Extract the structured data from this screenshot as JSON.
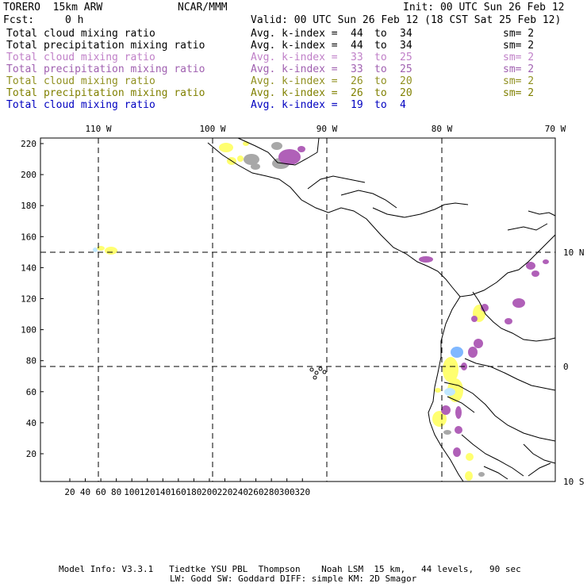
{
  "header": {
    "model_title": "TORERO  15km ARW",
    "org": "NCAR/MMM",
    "init": "Init: 00 UTC Sun 26 Feb 12",
    "fcst_label": "Fcst:",
    "fcst_value": "0 h",
    "valid": "Valid: 00 UTC Sun 26 Feb 12 (18 CST Sat 25 Feb 12)"
  },
  "legend_rows": [
    {
      "field": "Total cloud mixing ratio",
      "kindex_label": "Avg. k-index =",
      "range_from": "44",
      "to": "to",
      "range_to": "34",
      "sm": "sm= 2",
      "color": "#000000"
    },
    {
      "field": "Total precipitation mixing ratio",
      "kindex_label": "Avg. k-index =",
      "range_from": "44",
      "to": "to",
      "range_to": "34",
      "sm": "sm= 2",
      "color": "#000000"
    },
    {
      "field": "Total cloud mixing ratio",
      "kindex_label": "Avg. k-index =",
      "range_from": "33",
      "to": "to",
      "range_to": "25",
      "sm": "sm= 2",
      "color": "#c080c8"
    },
    {
      "field": "Total precipitation mixing ratio",
      "kindex_label": "Avg. k-index =",
      "range_from": "33",
      "to": "to",
      "range_to": "25",
      "sm": "sm= 2",
      "color": "#a060b0"
    },
    {
      "field": "Total cloud mixing ratio",
      "kindex_label": "Avg. k-index =",
      "range_from": "26",
      "to": "to",
      "range_to": "20",
      "sm": "sm= 2",
      "color": "#909020"
    },
    {
      "field": "Total precipitation mixing ratio",
      "kindex_label": "Avg. k-index =",
      "range_from": "26",
      "to": "to",
      "range_to": "20",
      "sm": "sm= 2",
      "color": "#808000"
    },
    {
      "field": "Total cloud mixing ratio",
      "kindex_label": "Avg. k-index =",
      "range_from": "19",
      "to": "to",
      "range_to": "4",
      "sm": "",
      "color": "#0000c0"
    }
  ],
  "map": {
    "lon_labels": [
      "110 W",
      "100 W",
      "90 W",
      "80 W",
      "70 W"
    ],
    "lat_labels": [
      "10 N",
      "0",
      "10 S"
    ],
    "x_ticks": [
      "20",
      "40",
      "60",
      "80",
      "100",
      "120",
      "140",
      "160",
      "180",
      "200",
      "220",
      "240",
      "260",
      "280",
      "300",
      "320"
    ],
    "y_ticks": [
      "220",
      "200",
      "180",
      "160",
      "140",
      "120",
      "100",
      "80",
      "60",
      "40",
      "20"
    ],
    "colors": {
      "gray": "#a8a8a8",
      "purple": "#b060b8",
      "yellow": "#ffff70",
      "light_blue": "#c0e8ff",
      "blue": "#80b8ff"
    }
  },
  "footer": {
    "line1": "Model Info: V3.3.1   Tiedtke YSU PBL  Thompson    Noah LSM  15 km,   44 levels,   90 sec",
    "line2": "LW: Godd SW: Goddard DIFF: simple KM: 2D Smagor"
  }
}
